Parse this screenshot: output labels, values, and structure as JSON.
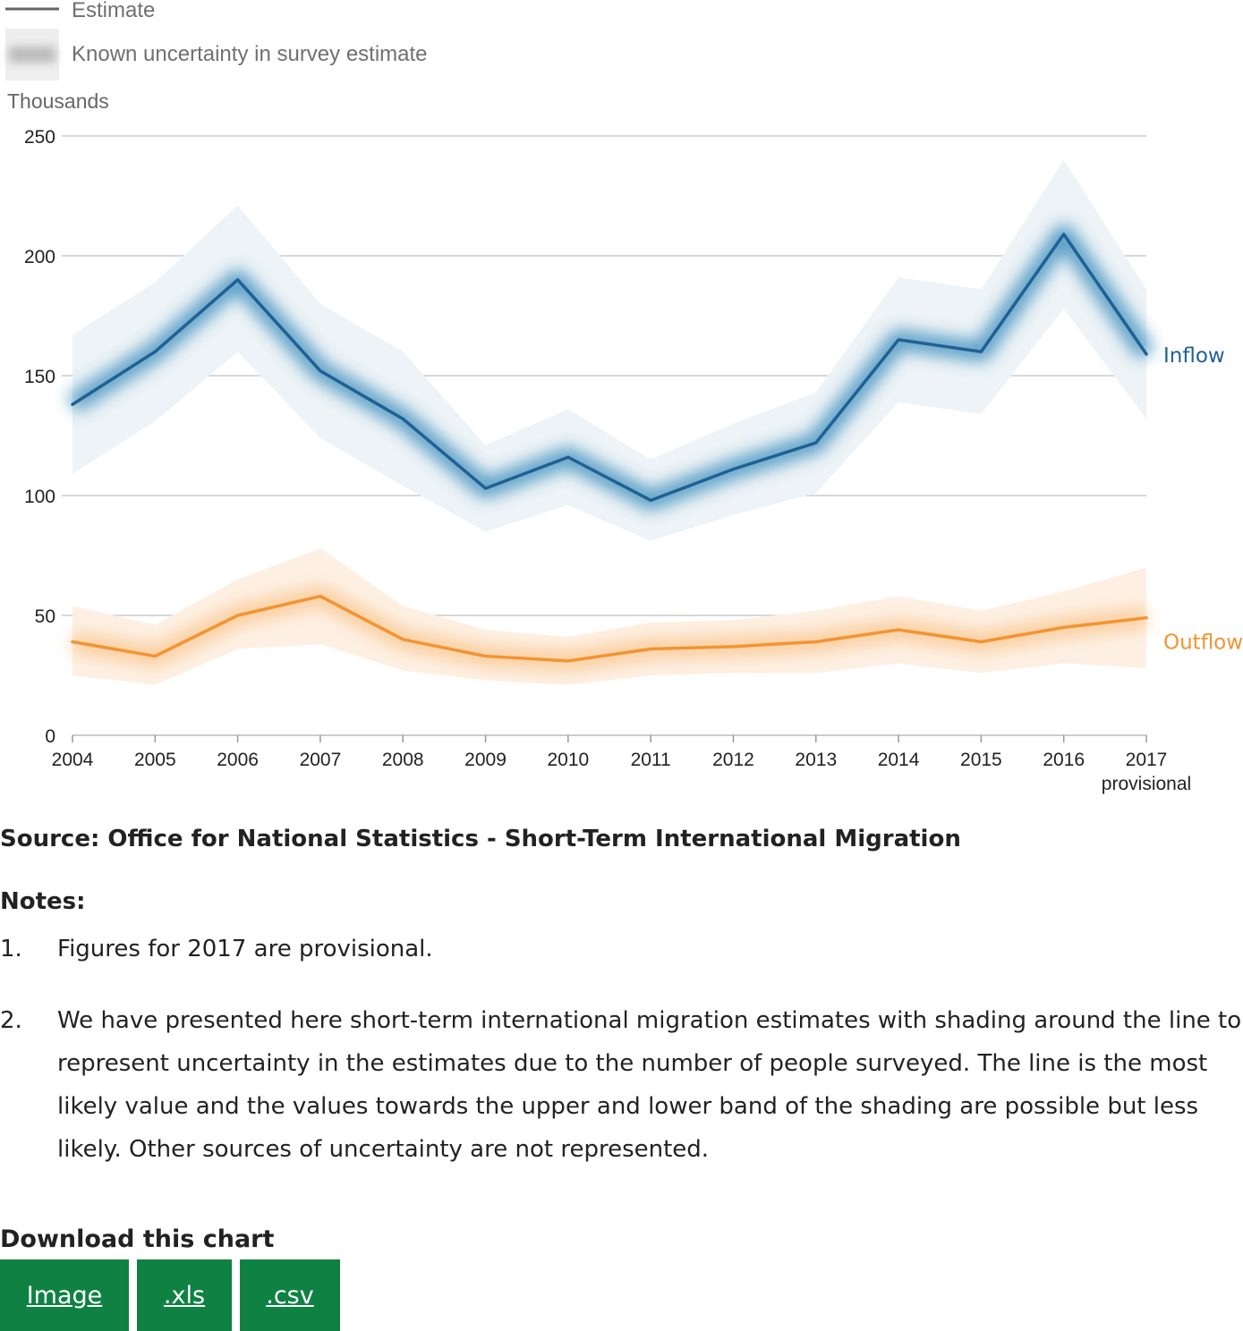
{
  "legend": {
    "estimate_label": "Estimate",
    "uncertainty_label": "Known uncertainty in survey estimate"
  },
  "chart_data": {
    "type": "line",
    "ylabel": "Thousands",
    "xlabel": "",
    "ylim": [
      0,
      250
    ],
    "yticks": [
      0,
      50,
      100,
      150,
      200,
      250
    ],
    "categories": [
      "2004",
      "2005",
      "2006",
      "2007",
      "2008",
      "2009",
      "2010",
      "2011",
      "2012",
      "2013",
      "2014",
      "2015",
      "2016",
      "2017"
    ],
    "category_sublabels": {
      "2017": "provisional"
    },
    "grid": true,
    "series": [
      {
        "name": "Inflow",
        "color": "#206095",
        "values": [
          138,
          160,
          190,
          152,
          132,
          103,
          116,
          98,
          111,
          122,
          165,
          160,
          209,
          159
        ],
        "upper": [
          167,
          189,
          221,
          180,
          160,
          121,
          136,
          115,
          130,
          143,
          191,
          186,
          240,
          186
        ],
        "lower": [
          109,
          131,
          160,
          124,
          104,
          85,
          96,
          81,
          92,
          101,
          139,
          134,
          178,
          132
        ]
      },
      {
        "name": "Outflow",
        "color": "#f39431",
        "values": [
          39,
          33,
          50,
          58,
          40,
          33,
          31,
          36,
          37,
          39,
          44,
          39,
          45,
          49
        ],
        "upper": [
          54,
          46,
          65,
          78,
          54,
          44,
          41,
          47,
          48,
          52,
          58,
          52,
          60,
          70
        ],
        "lower": [
          25,
          21,
          36,
          38,
          27,
          23,
          21,
          25,
          26,
          26,
          30,
          26,
          30,
          28
        ]
      }
    ]
  },
  "source_text": "Source: Office for National Statistics - Short-Term International Migration",
  "notes": {
    "title": "Notes:",
    "items": [
      {
        "num": "1.",
        "text": "Figures for 2017 are provisional."
      },
      {
        "num": "2.",
        "text": "We have presented here short-term international migration estimates with shading around the line to represent uncertainty in the estimates due to the number of people surveyed. The line is the most likely value and the values towards the upper and lower band of the shading are possible but less likely. Other sources of uncertainty are not represented."
      }
    ]
  },
  "download": {
    "title": "Download this chart",
    "buttons": [
      "Image",
      ".xls",
      ".csv"
    ]
  }
}
